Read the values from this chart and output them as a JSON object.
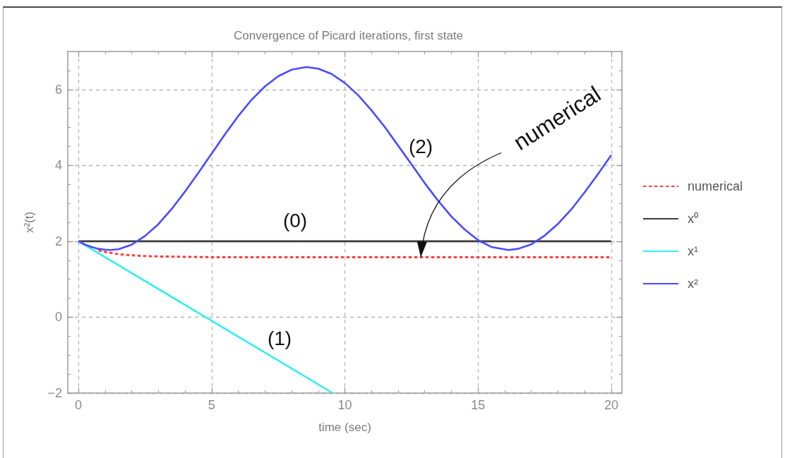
{
  "chart_data": {
    "type": "line",
    "title": "Convergence of Picard iterations, first state",
    "xlabel": "time (sec)",
    "ylabel": "x²(t)",
    "xlim": [
      -0.4,
      20.4
    ],
    "ylim": [
      -2,
      7
    ],
    "xticks": [
      0,
      {
        "value": 1,
        "label": null
      },
      {
        "value": 2,
        "label": null
      },
      {
        "value": 3,
        "label": null
      },
      {
        "value": 4,
        "label": null
      },
      5,
      {
        "value": 6,
        "label": null
      },
      {
        "value": 7,
        "label": null
      },
      {
        "value": 8,
        "label": null
      },
      {
        "value": 9,
        "label": null
      },
      10,
      {
        "value": 11,
        "label": null
      },
      {
        "value": 12,
        "label": null
      },
      {
        "value": 13,
        "label": null
      },
      {
        "value": 14,
        "label": null
      },
      15,
      {
        "value": 16,
        "label": null
      },
      {
        "value": 17,
        "label": null
      },
      {
        "value": 18,
        "label": null
      },
      {
        "value": 19,
        "label": null
      },
      20
    ],
    "yticks": [
      {
        "value": -2,
        "label": "−2"
      },
      {
        "value": -1.5,
        "label": null
      },
      {
        "value": -1,
        "label": null
      },
      {
        "value": -0.5,
        "label": null
      },
      0,
      {
        "value": 0.5,
        "label": null
      },
      {
        "value": 1,
        "label": null
      },
      {
        "value": 1.5,
        "label": null
      },
      2,
      {
        "value": 2.5,
        "label": null
      },
      {
        "value": 3,
        "label": null
      },
      {
        "value": 3.5,
        "label": null
      },
      4,
      {
        "value": 4.5,
        "label": null
      },
      {
        "value": 5,
        "label": null
      },
      {
        "value": 5.5,
        "label": null
      },
      6,
      {
        "value": 6.5,
        "label": null
      }
    ],
    "grid": true,
    "legend": "right",
    "series": [
      {
        "name": "numerical",
        "color": "#ff3c3c",
        "line_style": "dashed",
        "x": [
          0.75,
          1,
          1.25,
          1.5,
          2,
          2.5,
          3,
          4,
          5,
          20
        ],
        "values": [
          1.76,
          1.72,
          1.69,
          1.66,
          1.63,
          1.61,
          1.6,
          1.59,
          1.58,
          1.58
        ]
      },
      {
        "name": "x⁰",
        "color": "#3c3c3c",
        "x": [
          0,
          20
        ],
        "values": [
          2,
          2
        ]
      },
      {
        "name": "x¹",
        "color": "#33eeee",
        "x": [
          0,
          9.55
        ],
        "values": [
          2,
          -2
        ]
      },
      {
        "name": "x²",
        "color": "#4a4aff",
        "x": [
          0,
          0.25,
          0.5,
          0.75,
          1,
          1.19,
          1.5,
          2,
          2.5,
          3,
          3.5,
          4,
          4.5,
          5,
          5.5,
          6,
          6.5,
          7,
          7.5,
          8,
          8.55,
          9,
          9.5,
          10,
          10.5,
          11,
          11.5,
          12,
          12.5,
          13,
          13.5,
          14,
          14.5,
          15,
          15.5,
          16.14,
          16.5,
          17,
          17.5,
          18,
          18.5,
          19,
          19.5,
          20
        ],
        "values": [
          2,
          1.91,
          1.85,
          1.8,
          1.78,
          1.77,
          1.79,
          1.91,
          2.14,
          2.45,
          2.85,
          3.31,
          3.8,
          4.31,
          4.82,
          5.3,
          5.73,
          6.08,
          6.35,
          6.52,
          6.59,
          6.55,
          6.41,
          6.17,
          5.85,
          5.45,
          5.01,
          4.52,
          4.03,
          3.53,
          3.07,
          2.65,
          2.31,
          2.03,
          1.85,
          1.77,
          1.8,
          1.92,
          2.15,
          2.46,
          2.84,
          3.29,
          3.77,
          4.27
        ]
      }
    ],
    "annotations": [
      "(0)",
      "(1)",
      "(2)",
      {
        "text": "numerical",
        "x": 12.85,
        "y": 1.58
      }
    ]
  }
}
